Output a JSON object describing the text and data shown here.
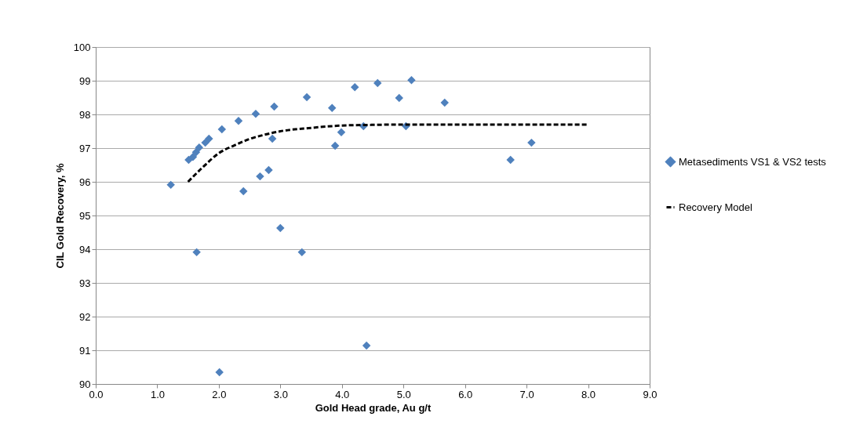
{
  "chart_data": {
    "type": "scatter",
    "xlabel": "Gold Head grade, Au g/t",
    "ylabel": "CIL Gold Recovery, %",
    "xlim": [
      0,
      9
    ],
    "ylim": [
      90,
      100
    ],
    "xticks": [
      {
        "value": 0,
        "label": "0.0"
      },
      {
        "value": 1,
        "label": "1.0"
      },
      {
        "value": 2,
        "label": "2.0"
      },
      {
        "value": 3,
        "label": "3.0"
      },
      {
        "value": 4,
        "label": "4.0"
      },
      {
        "value": 5,
        "label": "5.0"
      },
      {
        "value": 6,
        "label": "6.0"
      },
      {
        "value": 7,
        "label": "7.0"
      },
      {
        "value": 8,
        "label": "8.0"
      },
      {
        "value": 9,
        "label": "9.0"
      }
    ],
    "yticks": [
      90,
      91,
      92,
      93,
      94,
      95,
      96,
      97,
      98,
      99,
      100
    ],
    "grid": "y",
    "legend": "right",
    "series": [
      {
        "name": "Metasediments VS1 & VS2 tests",
        "marker": "diamond",
        "color": "#4f81bd",
        "x": [
          1.22,
          1.51,
          1.58,
          1.63,
          1.68,
          1.78,
          1.84,
          1.64,
          2.05,
          2.01,
          2.32,
          2.4,
          2.6,
          2.67,
          2.81,
          2.87,
          2.9,
          3.0,
          3.35,
          3.43,
          3.84,
          3.89,
          3.99,
          4.21,
          4.35,
          4.4,
          4.58,
          4.93,
          5.13,
          5.04,
          5.67,
          6.74,
          7.08
        ],
        "values": [
          95.91,
          96.65,
          96.74,
          96.88,
          97.02,
          97.16,
          97.28,
          93.91,
          97.56,
          90.35,
          97.81,
          95.72,
          98.02,
          96.16,
          96.35,
          97.28,
          98.23,
          94.63,
          93.91,
          98.51,
          98.19,
          97.07,
          97.47,
          98.81,
          97.65,
          91.14,
          98.93,
          98.49,
          99.02,
          97.65,
          98.35,
          96.65,
          97.16
        ]
      },
      {
        "name": "Recovery Model",
        "type": "line",
        "line_style": "dashed",
        "color": "#000000",
        "x": [
          1.5,
          1.75,
          2.0,
          2.25,
          2.5,
          2.75,
          3.0,
          3.5,
          4.0,
          4.5,
          5.0,
          6.0,
          7.0,
          8.0
        ],
        "values": [
          96.0,
          96.45,
          96.85,
          97.08,
          97.27,
          97.4,
          97.5,
          97.6,
          97.67,
          97.69,
          97.7,
          97.7,
          97.7,
          97.7
        ]
      }
    ]
  }
}
